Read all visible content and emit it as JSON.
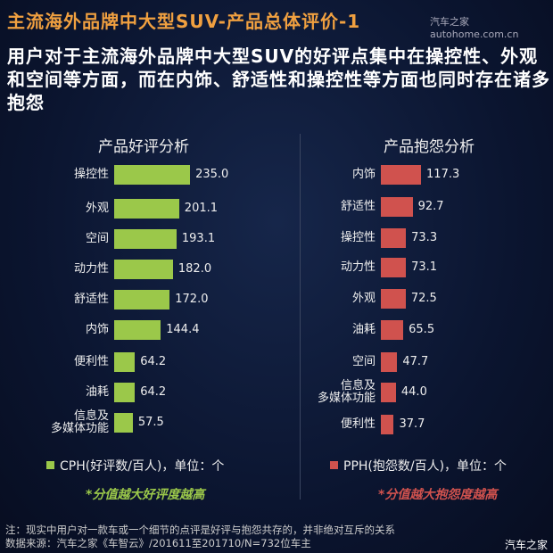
{
  "header": {
    "title": "主流海外品牌中大型SUV-产品总体评价-1",
    "watermark": "汽车之家autohome.com.cn",
    "subtitle": "用户对于主流海外品牌中大型SUV的好评点集中在操控性、外观和空间等方面，而在内饰、舒适性和操控性等方面也同时存在诸多抱怨"
  },
  "chart_data": [
    {
      "type": "bar",
      "orientation": "horizontal",
      "title": "产品好评分析",
      "categories": [
        "操控性",
        "外观",
        "空间",
        "动力性",
        "舒适性",
        "内饰",
        "便利性",
        "油耗",
        "信息及多媒体功能"
      ],
      "values": [
        235.0,
        201.1,
        193.1,
        182.0,
        172.0,
        144.4,
        64.2,
        64.2,
        57.5
      ],
      "series_name": "CPH(好评数/百人)，单位：个",
      "color": "#9bc84a",
      "note": "*分值越大好评度越高"
    },
    {
      "type": "bar",
      "orientation": "horizontal",
      "title": "产品抱怨分析",
      "categories": [
        "内饰",
        "舒适性",
        "操控性",
        "动力性",
        "外观",
        "油耗",
        "空间",
        "信息及多媒体功能",
        "便利性"
      ],
      "values": [
        117.3,
        92.7,
        73.3,
        73.1,
        72.5,
        65.5,
        47.7,
        44.0,
        37.7
      ],
      "series_name": "PPH(抱怨数/百人)，单位：个",
      "color": "#d0524e",
      "note": "*分值越大抱怨度越高"
    }
  ],
  "footer": {
    "note": "注：现实中用户对一款车或一个细节的点评是好评与抱怨共存的，并非绝对互斥的关系",
    "source": "数据来源：汽车之家《车智云》/201611至201710/N=732位车主",
    "logo": "汽车之家"
  }
}
